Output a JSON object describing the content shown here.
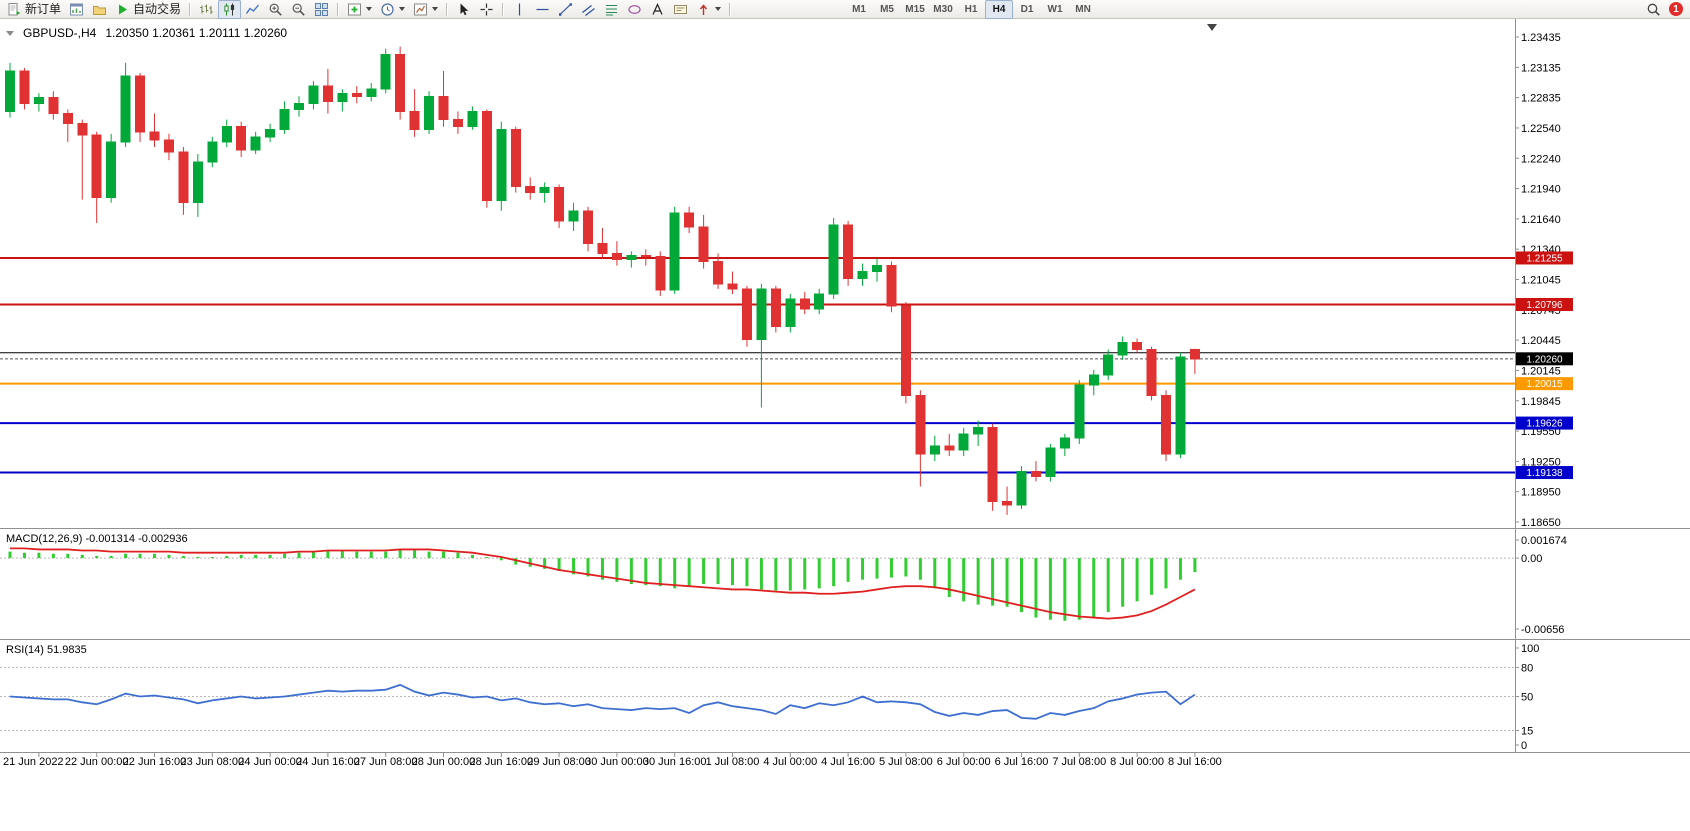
{
  "toolbar": {
    "new_order": "新订单",
    "autotrading": "自动交易",
    "timeframes": [
      "M1",
      "M5",
      "M15",
      "M30",
      "H1",
      "H4",
      "D1",
      "W1",
      "MN"
    ],
    "active_timeframe": "H4",
    "alert_count": "1"
  },
  "chart": {
    "symbol": "GBPUSD-,H4",
    "ohlc": "1.20350 1.20361 1.20111 1.20260",
    "price_axis_labels": [
      "1.23435",
      "1.23135",
      "1.22835",
      "1.22540",
      "1.22240",
      "1.21940",
      "1.21640",
      "1.21340",
      "1.21045",
      "1.20745",
      "1.20445",
      "1.20145",
      "1.19845",
      "1.19550",
      "1.19250",
      "1.18950",
      "1.18650"
    ],
    "hlines": [
      {
        "price": 1.21255,
        "label": "1.21255",
        "color": "#cc1111",
        "width": 2,
        "badge": true
      },
      {
        "price": 1.20796,
        "label": "1.20796",
        "color": "#cc1111",
        "width": 2,
        "badge": true
      },
      {
        "price": 1.2032,
        "label": "",
        "color": "#000000",
        "width": 1,
        "badge": false
      },
      {
        "price": 1.20015,
        "label": "1.20015",
        "color": "#ff9900",
        "width": 2,
        "badge": true
      },
      {
        "price": 1.19626,
        "label": "1.19626",
        "color": "#0000cc",
        "width": 2,
        "badge": true
      },
      {
        "price": 1.19138,
        "label": "1.19138",
        "color": "#0000cc",
        "width": 2,
        "badge": true
      }
    ],
    "bid": {
      "price": 1.2026,
      "label": "1.20260",
      "color": "#000000"
    },
    "colors": {
      "bull": "#00a83a",
      "bear": "#e03232",
      "macd_histogram": "#32cd32",
      "macd_signal": "#e02020",
      "rsi": "#3e6fd0",
      "axis": "#000000",
      "panel_border": "#909090"
    }
  },
  "macd_panel": {
    "label": "MACD(12,26,9) -0.001314 -0.002936",
    "scale": [
      {
        "value": 0.001674,
        "label": "0.001674"
      },
      {
        "value": 0,
        "label": "0.00"
      },
      {
        "value": -0.00656,
        "label": "-0.00656"
      }
    ]
  },
  "rsi_panel": {
    "label": "RSI(14) 51.9835",
    "levels": [
      {
        "value": 100,
        "label": "100",
        "dashed": false
      },
      {
        "value": 80,
        "label": "80",
        "dashed": true
      },
      {
        "value": 50,
        "label": "50",
        "dashed": true
      },
      {
        "value": 15,
        "label": "15",
        "dashed": true
      },
      {
        "value": 0,
        "label": "0",
        "dashed": false
      }
    ]
  },
  "chart_data": {
    "type": "candlestick",
    "title": "GBPUSD-,H4",
    "symbol": "GBPUSD",
    "timeframe": "H4",
    "y_range": [
      1.1865,
      1.23435
    ],
    "x_labels": [
      "21 Jun 2022",
      "22 Jun 00:00",
      "22 Jun 16:00",
      "23 Jun 08:00",
      "24 Jun 00:00",
      "24 Jun 16:00",
      "27 Jun 08:00",
      "28 Jun 00:00",
      "28 Jun 16:00",
      "29 Jun 08:00",
      "30 Jun 00:00",
      "30 Jun 16:00",
      "1 Jul 08:00",
      "4 Jul 00:00",
      "4 Jul 16:00",
      "5 Jul 08:00",
      "6 Jul 00:00",
      "6 Jul 16:00",
      "7 Jul 08:00",
      "8 Jul 00:00",
      "8 Jul 16:00"
    ],
    "first_label_candle_index": 2,
    "label_every_n_candles": 4,
    "candles_ohlc": [
      [
        1.227,
        1.2318,
        1.2264,
        1.231
      ],
      [
        1.231,
        1.2313,
        1.2272,
        1.2278
      ],
      [
        1.2278,
        1.2288,
        1.227,
        1.2284
      ],
      [
        1.2284,
        1.229,
        1.2262,
        1.2268
      ],
      [
        1.2268,
        1.2272,
        1.224,
        1.2258
      ],
      [
        1.2258,
        1.2262,
        1.2183,
        1.2247
      ],
      [
        1.2247,
        1.225,
        1.216,
        1.2185
      ],
      [
        1.2185,
        1.2248,
        1.218,
        1.224
      ],
      [
        1.224,
        1.2318,
        1.2235,
        1.2305
      ],
      [
        1.2305,
        1.2308,
        1.224,
        1.225
      ],
      [
        1.225,
        1.2268,
        1.2235,
        1.2242
      ],
      [
        1.2242,
        1.2248,
        1.2222,
        1.223
      ],
      [
        1.223,
        1.2235,
        1.2168,
        1.218
      ],
      [
        1.218,
        1.2228,
        1.2166,
        1.222
      ],
      [
        1.222,
        1.2245,
        1.2215,
        1.224
      ],
      [
        1.224,
        1.2262,
        1.2235,
        1.2255
      ],
      [
        1.2255,
        1.226,
        1.2225,
        1.2232
      ],
      [
        1.2232,
        1.225,
        1.2228,
        1.2245
      ],
      [
        1.2245,
        1.2258,
        1.224,
        1.2252
      ],
      [
        1.2252,
        1.228,
        1.2248,
        1.2272
      ],
      [
        1.2272,
        1.2285,
        1.2265,
        1.2278
      ],
      [
        1.2278,
        1.23,
        1.2272,
        1.2295
      ],
      [
        1.2295,
        1.2312,
        1.2268,
        1.228
      ],
      [
        1.228,
        1.2292,
        1.227,
        1.2288
      ],
      [
        1.2288,
        1.2295,
        1.2278,
        1.2285
      ],
      [
        1.2285,
        1.2298,
        1.228,
        1.2292
      ],
      [
        1.2292,
        1.2332,
        1.2288,
        1.2326
      ],
      [
        1.2326,
        1.2334,
        1.2262,
        1.227
      ],
      [
        1.227,
        1.2292,
        1.2245,
        1.2252
      ],
      [
        1.2252,
        1.229,
        1.2248,
        1.2285
      ],
      [
        1.2285,
        1.231,
        1.2255,
        1.2262
      ],
      [
        1.2262,
        1.227,
        1.2248,
        1.2255
      ],
      [
        1.2255,
        1.2275,
        1.2252,
        1.227
      ],
      [
        1.227,
        1.2272,
        1.2175,
        1.2182
      ],
      [
        1.2182,
        1.226,
        1.2172,
        1.2252
      ],
      [
        1.2252,
        1.2255,
        1.219,
        1.2196
      ],
      [
        1.2196,
        1.2205,
        1.2183,
        1.219
      ],
      [
        1.219,
        1.22,
        1.218,
        1.2195
      ],
      [
        1.2195,
        1.2198,
        1.2155,
        1.2162
      ],
      [
        1.2162,
        1.218,
        1.2152,
        1.2172
      ],
      [
        1.2172,
        1.2176,
        1.2132,
        1.214
      ],
      [
        1.214,
        1.2155,
        1.2125,
        1.213
      ],
      [
        1.213,
        1.2142,
        1.2118,
        1.2124
      ],
      [
        1.2124,
        1.2132,
        1.2116,
        1.2128
      ],
      [
        1.2128,
        1.2134,
        1.2118,
        1.2127
      ],
      [
        1.2127,
        1.2132,
        1.2088,
        1.2094
      ],
      [
        1.2094,
        1.2176,
        1.209,
        1.217
      ],
      [
        1.217,
        1.2176,
        1.215,
        1.2156
      ],
      [
        1.2156,
        1.2168,
        1.2115,
        1.2122
      ],
      [
        1.2122,
        1.213,
        1.2095,
        1.21
      ],
      [
        1.21,
        1.2112,
        1.209,
        1.2095
      ],
      [
        1.2095,
        1.2098,
        1.2038,
        1.2045
      ],
      [
        1.2045,
        1.21,
        1.1978,
        1.2095
      ],
      [
        1.2095,
        1.2098,
        1.2052,
        1.2058
      ],
      [
        1.2058,
        1.209,
        1.2052,
        1.2085
      ],
      [
        1.2085,
        1.2092,
        1.207,
        1.2075
      ],
      [
        1.2075,
        1.2095,
        1.207,
        1.209
      ],
      [
        1.209,
        1.2165,
        1.2085,
        1.2158
      ],
      [
        1.2158,
        1.2162,
        1.2098,
        1.2105
      ],
      [
        1.2105,
        1.212,
        1.2098,
        1.2112
      ],
      [
        1.2112,
        1.2125,
        1.2102,
        1.2118
      ],
      [
        1.2118,
        1.2122,
        1.2072,
        1.2078
      ],
      [
        1.2078,
        1.2082,
        1.1982,
        1.199
      ],
      [
        1.199,
        1.1995,
        1.19,
        1.1932
      ],
      [
        1.1932,
        1.195,
        1.1925,
        1.194
      ],
      [
        1.194,
        1.1952,
        1.193,
        1.1936
      ],
      [
        1.1936,
        1.1958,
        1.193,
        1.1952
      ],
      [
        1.1952,
        1.1965,
        1.194,
        1.1958
      ],
      [
        1.1958,
        1.1962,
        1.1876,
        1.1885
      ],
      [
        1.1885,
        1.19,
        1.1872,
        1.1882
      ],
      [
        1.1882,
        1.192,
        1.1878,
        1.1915
      ],
      [
        1.1915,
        1.1925,
        1.1905,
        1.191
      ],
      [
        1.191,
        1.1942,
        1.1905,
        1.1938
      ],
      [
        1.1938,
        1.1952,
        1.193,
        1.1948
      ],
      [
        1.1948,
        1.2005,
        1.1942,
        1.2
      ],
      [
        1.2,
        1.2015,
        1.199,
        1.201
      ],
      [
        1.201,
        1.2035,
        1.2005,
        1.203
      ],
      [
        1.203,
        1.2048,
        1.2025,
        1.2042
      ],
      [
        1.2042,
        1.2046,
        1.2032,
        1.2035
      ],
      [
        1.2035,
        1.2038,
        1.1985,
        1.199
      ],
      [
        1.199,
        1.1995,
        1.1925,
        1.1932
      ],
      [
        1.1932,
        1.2032,
        1.1928,
        1.2028
      ],
      [
        1.2035,
        1.20361,
        1.20111,
        1.2026
      ]
    ],
    "indicators": {
      "macd": {
        "params": [
          12,
          26,
          9
        ],
        "scale": [
          0.001674,
          0.0,
          -0.00656
        ],
        "histogram": [
          0.0006,
          0.0005,
          0.0005,
          0.0004,
          0.0004,
          0.0003,
          0.0002,
          0.0002,
          0.0004,
          0.0004,
          0.0004,
          0.0003,
          0.0002,
          0.0001,
          0.0001,
          0.0002,
          0.0003,
          0.0003,
          0.0003,
          0.0004,
          0.0005,
          0.0006,
          0.0007,
          0.0007,
          0.0006,
          0.0006,
          0.0006,
          0.0008,
          0.0008,
          0.0006,
          0.0006,
          0.0005,
          0.0003,
          0.0001,
          -0.0002,
          -0.0006,
          -0.0008,
          -0.001,
          -0.0012,
          -0.0015,
          -0.0017,
          -0.002,
          -0.0022,
          -0.0024,
          -0.0025,
          -0.0026,
          -0.0028,
          -0.0026,
          -0.0024,
          -0.0024,
          -0.0025,
          -0.0026,
          -0.0029,
          -0.003,
          -0.003,
          -0.0029,
          -0.0028,
          -0.0026,
          -0.0022,
          -0.002,
          -0.0019,
          -0.0018,
          -0.0017,
          -0.002,
          -0.0028,
          -0.0036,
          -0.004,
          -0.0043,
          -0.0044,
          -0.0045,
          -0.005,
          -0.0055,
          -0.0057,
          -0.0058,
          -0.0057,
          -0.0055,
          -0.005,
          -0.0045,
          -0.004,
          -0.0034,
          -0.0028,
          -0.002,
          -0.0013
        ],
        "signal": [
          0.0009,
          0.0009,
          0.0008,
          0.0008,
          0.0008,
          0.0007,
          0.0007,
          0.0006,
          0.0006,
          0.0006,
          0.0006,
          0.0006,
          0.0005,
          0.0005,
          0.0005,
          0.0005,
          0.0005,
          0.0005,
          0.0005,
          0.0005,
          0.0006,
          0.0006,
          0.0007,
          0.0007,
          0.0007,
          0.0007,
          0.0007,
          0.0008,
          0.0008,
          0.0008,
          0.0007,
          0.0006,
          0.0005,
          0.0003,
          0.0001,
          -0.0002,
          -0.0005,
          -0.0008,
          -0.0011,
          -0.0013,
          -0.0015,
          -0.0017,
          -0.0019,
          -0.0021,
          -0.0023,
          -0.0024,
          -0.0025,
          -0.0026,
          -0.0027,
          -0.0028,
          -0.0029,
          -0.0029,
          -0.003,
          -0.0031,
          -0.0032,
          -0.0032,
          -0.0033,
          -0.0033,
          -0.0032,
          -0.0031,
          -0.0029,
          -0.0027,
          -0.0026,
          -0.0026,
          -0.0027,
          -0.0029,
          -0.0032,
          -0.0035,
          -0.0038,
          -0.0041,
          -0.0044,
          -0.0047,
          -0.005,
          -0.0052,
          -0.0054,
          -0.0055,
          -0.0056,
          -0.0055,
          -0.0053,
          -0.0049,
          -0.0043,
          -0.0036,
          -0.0029
        ]
      },
      "rsi": {
        "params": [
          14
        ],
        "last": 51.9835,
        "levels": [
          80,
          50,
          15
        ],
        "values": [
          50,
          49,
          48,
          47,
          47,
          44,
          42,
          47,
          53,
          50,
          51,
          49,
          47,
          43,
          46,
          48,
          50,
          48,
          49,
          50,
          52,
          54,
          56,
          55,
          56,
          56,
          57,
          62,
          55,
          51,
          54,
          52,
          49,
          50,
          46,
          48,
          44,
          42,
          43,
          40,
          42,
          38,
          37,
          36,
          38,
          37,
          38,
          33,
          41,
          44,
          40,
          38,
          36,
          32,
          41,
          38,
          43,
          41,
          44,
          50,
          44,
          45,
          44,
          42,
          34,
          30,
          33,
          31,
          35,
          36,
          28,
          27,
          33,
          31,
          35,
          38,
          45,
          48,
          52,
          54,
          55,
          42,
          52
        ]
      }
    }
  }
}
